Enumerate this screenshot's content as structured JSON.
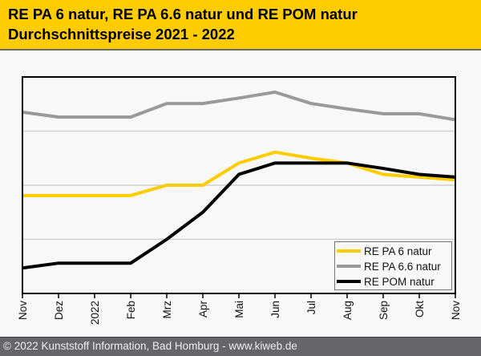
{
  "header": {
    "title_line1": "RE PA 6 natur, RE PA 6.6 natur und RE POM natur",
    "title_line2": "Durchschnittspreise 2021 - 2022"
  },
  "footer": {
    "copyright": "© 2022 Kunststoff Information, Bad Homburg - www.kiweb.de"
  },
  "colors": {
    "header_bg": "#ffcc00",
    "pa6": "#ffcc00",
    "pa66": "#999999",
    "pom": "#000000"
  },
  "chart_data": {
    "type": "line",
    "title": "RE PA 6 natur, RE PA 6.6 natur und RE POM natur Durchschnittspreise 2021 - 2022",
    "xlabel": "",
    "ylabel": "",
    "y_units": "relative (gridline steps, no y tick labels shown)",
    "ylim": [
      0,
      4
    ],
    "grid": true,
    "legend_position": "bottom-right",
    "categories": [
      "Nov",
      "Dez",
      "2022",
      "Feb",
      "Mrz",
      "Apr",
      "Mai",
      "Jun",
      "Jul",
      "Aug",
      "Sep",
      "Okt",
      "Nov"
    ],
    "series": [
      {
        "name": "RE PA 6 natur",
        "color": "#ffcc00",
        "values": [
          1.81,
          1.81,
          1.81,
          1.81,
          2.0,
          2.0,
          2.41,
          2.61,
          2.5,
          2.41,
          2.2,
          2.15,
          2.1
        ]
      },
      {
        "name": "RE PA 6.6 natur",
        "color": "#999999",
        "values": [
          3.35,
          3.26,
          3.26,
          3.26,
          3.51,
          3.51,
          3.61,
          3.72,
          3.51,
          3.41,
          3.32,
          3.32,
          3.21
        ]
      },
      {
        "name": "RE POM natur",
        "color": "#000000",
        "values": [
          0.47,
          0.56,
          0.56,
          0.56,
          1.0,
          1.5,
          2.2,
          2.41,
          2.41,
          2.41,
          2.31,
          2.2,
          2.15
        ]
      }
    ]
  }
}
